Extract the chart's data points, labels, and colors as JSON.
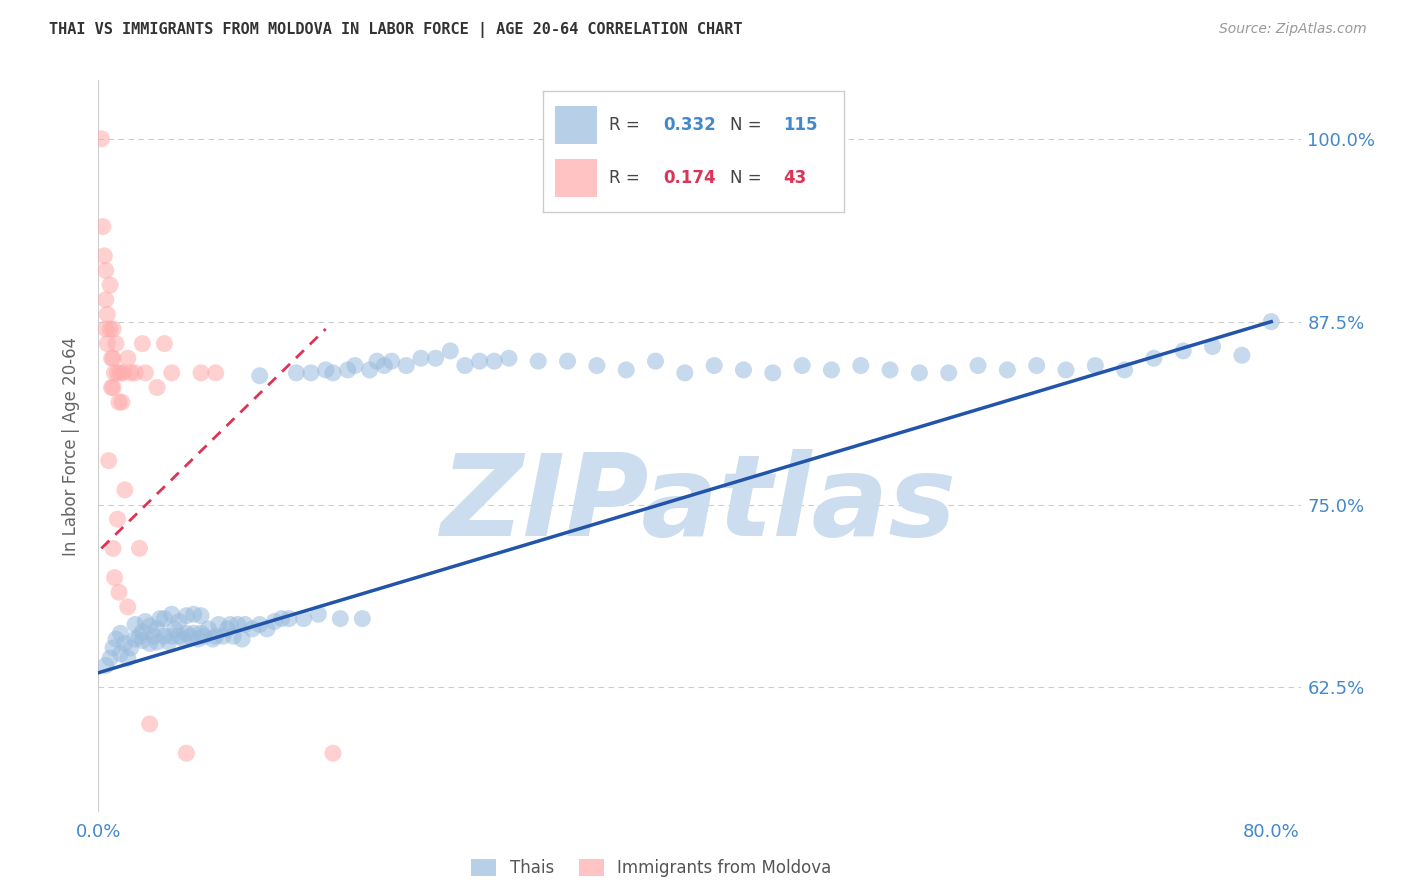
{
  "title": "THAI VS IMMIGRANTS FROM MOLDOVA IN LABOR FORCE | AGE 20-64 CORRELATION CHART",
  "source": "Source: ZipAtlas.com",
  "ylabel": "In Labor Force | Age 20-64",
  "xlim": [
    0.0,
    0.82
  ],
  "ylim": [
    0.54,
    1.04
  ],
  "yticks": [
    0.625,
    0.75,
    0.875,
    1.0
  ],
  "ytick_labels": [
    "62.5%",
    "75.0%",
    "87.5%",
    "100.0%"
  ],
  "xtick_positions": [
    0.0,
    0.16,
    0.32,
    0.48,
    0.64,
    0.8
  ],
  "xtick_labels": [
    "0.0%",
    "",
    "",
    "",
    "",
    "80.0%"
  ],
  "legend_blue_r": "0.332",
  "legend_blue_n": "115",
  "legend_pink_r": "0.174",
  "legend_pink_n": "43",
  "blue_color": "#99BBDD",
  "pink_color": "#FFAAAA",
  "trend_blue_color": "#2255AA",
  "trend_pink_color": "#DD3355",
  "watermark": "ZIPatlas",
  "watermark_color": "#CCDDF0",
  "background_color": "#FFFFFF",
  "grid_color": "#CCCCCC",
  "title_color": "#333333",
  "axis_label_color": "#4488CC",
  "blue_scatter_x": [
    0.005,
    0.008,
    0.01,
    0.012,
    0.015,
    0.015,
    0.018,
    0.02,
    0.022,
    0.025,
    0.025,
    0.028,
    0.03,
    0.03,
    0.032,
    0.035,
    0.035,
    0.038,
    0.04,
    0.04,
    0.042,
    0.045,
    0.045,
    0.048,
    0.05,
    0.05,
    0.052,
    0.055,
    0.055,
    0.058,
    0.06,
    0.06,
    0.062,
    0.065,
    0.065,
    0.068,
    0.07,
    0.07,
    0.072,
    0.075,
    0.078,
    0.08,
    0.082,
    0.085,
    0.088,
    0.09,
    0.092,
    0.095,
    0.098,
    0.1,
    0.105,
    0.11,
    0.11,
    0.115,
    0.12,
    0.125,
    0.13,
    0.135,
    0.14,
    0.145,
    0.15,
    0.155,
    0.16,
    0.165,
    0.17,
    0.175,
    0.18,
    0.185,
    0.19,
    0.195,
    0.2,
    0.21,
    0.22,
    0.23,
    0.24,
    0.25,
    0.26,
    0.27,
    0.28,
    0.3,
    0.32,
    0.34,
    0.36,
    0.38,
    0.4,
    0.42,
    0.44,
    0.46,
    0.48,
    0.5,
    0.52,
    0.54,
    0.56,
    0.58,
    0.6,
    0.62,
    0.64,
    0.66,
    0.68,
    0.7,
    0.72,
    0.74,
    0.76,
    0.78,
    0.8
  ],
  "blue_scatter_y": [
    0.64,
    0.645,
    0.652,
    0.658,
    0.648,
    0.662,
    0.655,
    0.645,
    0.652,
    0.658,
    0.668,
    0.66,
    0.657,
    0.663,
    0.67,
    0.655,
    0.667,
    0.66,
    0.656,
    0.665,
    0.672,
    0.66,
    0.672,
    0.656,
    0.66,
    0.675,
    0.665,
    0.66,
    0.67,
    0.658,
    0.662,
    0.674,
    0.66,
    0.662,
    0.675,
    0.658,
    0.662,
    0.674,
    0.66,
    0.665,
    0.658,
    0.66,
    0.668,
    0.66,
    0.665,
    0.668,
    0.66,
    0.668,
    0.658,
    0.668,
    0.665,
    0.668,
    0.838,
    0.665,
    0.67,
    0.672,
    0.672,
    0.84,
    0.672,
    0.84,
    0.675,
    0.842,
    0.84,
    0.672,
    0.842,
    0.845,
    0.672,
    0.842,
    0.848,
    0.845,
    0.848,
    0.845,
    0.85,
    0.85,
    0.855,
    0.845,
    0.848,
    0.848,
    0.85,
    0.848,
    0.848,
    0.845,
    0.842,
    0.848,
    0.84,
    0.845,
    0.842,
    0.84,
    0.845,
    0.842,
    0.845,
    0.842,
    0.84,
    0.84,
    0.845,
    0.842,
    0.845,
    0.842,
    0.845,
    0.842,
    0.85,
    0.855,
    0.858,
    0.852,
    0.875
  ],
  "pink_scatter_x": [
    0.002,
    0.003,
    0.004,
    0.005,
    0.005,
    0.005,
    0.006,
    0.006,
    0.007,
    0.008,
    0.008,
    0.009,
    0.009,
    0.01,
    0.01,
    0.01,
    0.01,
    0.011,
    0.011,
    0.012,
    0.013,
    0.013,
    0.014,
    0.014,
    0.015,
    0.016,
    0.017,
    0.018,
    0.02,
    0.02,
    0.022,
    0.025,
    0.028,
    0.03,
    0.032,
    0.035,
    0.04,
    0.045,
    0.05,
    0.06,
    0.07,
    0.08,
    0.16
  ],
  "pink_scatter_y": [
    1.0,
    0.94,
    0.92,
    0.91,
    0.89,
    0.87,
    0.88,
    0.86,
    0.78,
    0.9,
    0.87,
    0.85,
    0.83,
    0.87,
    0.85,
    0.83,
    0.72,
    0.84,
    0.7,
    0.86,
    0.84,
    0.74,
    0.82,
    0.69,
    0.84,
    0.82,
    0.84,
    0.76,
    0.85,
    0.68,
    0.84,
    0.84,
    0.72,
    0.86,
    0.84,
    0.6,
    0.83,
    0.86,
    0.84,
    0.58,
    0.84,
    0.84,
    0.58
  ],
  "blue_trend_x": [
    0.0,
    0.8
  ],
  "blue_trend_y": [
    0.635,
    0.875
  ],
  "pink_trend_x": [
    0.002,
    0.155
  ],
  "pink_trend_y": [
    0.72,
    0.87
  ]
}
